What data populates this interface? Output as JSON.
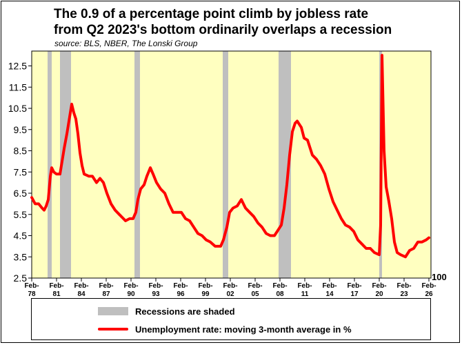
{
  "title_line_1": "The 0.9 of a percentage point climb by jobless rate",
  "title_line_2": "from Q2 2023's bottom ordinarily overlaps a recession",
  "source": "source: BLS, NBER, The Lonski Group",
  "right_label": "100",
  "legend": {
    "recession_label": "Recessions are shaded",
    "rate_label": "Unemployment rate: moving 3-month average in %"
  },
  "colors": {
    "plot_background": "#ffffc0",
    "recession_shade": "#bfbfbf",
    "series_line": "#ff0000"
  },
  "chart_data": {
    "type": "line",
    "title": "The 0.9 of a percentage point climb by jobless rate from Q2 2023's bottom ordinarily overlaps a recession",
    "ylim": [
      2.5,
      13.2
    ],
    "yticks": [
      2.5,
      3.5,
      4.5,
      5.5,
      6.5,
      7.5,
      8.5,
      9.5,
      10.5,
      11.5,
      12.5
    ],
    "ytick_labels": [
      "2.5",
      "3.5",
      "4.5",
      "5.5",
      "6.5",
      "7.5",
      "8.5",
      "9.5",
      "10.5",
      "11.5",
      "12.5"
    ],
    "xlim": [
      "1978-02",
      "2026-05"
    ],
    "xtick_labels": [
      {
        "date": "1978-02",
        "line1": "Feb-",
        "line2": "78"
      },
      {
        "date": "1981-02",
        "line1": "Feb-",
        "line2": "81"
      },
      {
        "date": "1984-02",
        "line1": "Feb-",
        "line2": "84"
      },
      {
        "date": "1987-02",
        "line1": "Feb-",
        "line2": "87"
      },
      {
        "date": "1990-02",
        "line1": "Feb-",
        "line2": "90"
      },
      {
        "date": "1993-02",
        "line1": "Feb-",
        "line2": "93"
      },
      {
        "date": "1996-02",
        "line1": "Feb-",
        "line2": "96"
      },
      {
        "date": "1999-02",
        "line1": "Feb-",
        "line2": "99"
      },
      {
        "date": "2002-02",
        "line1": "Feb-",
        "line2": "02"
      },
      {
        "date": "2005-02",
        "line1": "Feb-",
        "line2": "05"
      },
      {
        "date": "2008-02",
        "line1": "Feb-",
        "line2": "08"
      },
      {
        "date": "2011-02",
        "line1": "Feb-",
        "line2": "11"
      },
      {
        "date": "2014-02",
        "line1": "Feb-",
        "line2": "14"
      },
      {
        "date": "2017-02",
        "line1": "Feb-",
        "line2": "17"
      },
      {
        "date": "2020-02",
        "line1": "Feb-",
        "line2": "20"
      },
      {
        "date": "2023-02",
        "line1": "Feb-",
        "line2": "23"
      },
      {
        "date": "2026-02",
        "line1": "Feb-",
        "line2": "26"
      }
    ],
    "recessions": [
      {
        "start": "1980-01",
        "end": "1980-07"
      },
      {
        "start": "1981-07",
        "end": "1982-11"
      },
      {
        "start": "1990-07",
        "end": "1991-03"
      },
      {
        "start": "2001-03",
        "end": "2001-11"
      },
      {
        "start": "2007-12",
        "end": "2009-06"
      },
      {
        "start": "2020-02",
        "end": "2020-04"
      }
    ],
    "grid": false,
    "legend_position": "bottom",
    "series": [
      {
        "name": "Unemployment rate: moving 3-month average in %",
        "points": [
          [
            "1978-02",
            6.3
          ],
          [
            "1978-07",
            6.0
          ],
          [
            "1978-12",
            6.0
          ],
          [
            "1979-05",
            5.8
          ],
          [
            "1979-08",
            5.7
          ],
          [
            "1979-11",
            5.9
          ],
          [
            "1980-02",
            6.2
          ],
          [
            "1980-05",
            7.3
          ],
          [
            "1980-07",
            7.7
          ],
          [
            "1980-10",
            7.5
          ],
          [
            "1981-02",
            7.4
          ],
          [
            "1981-07",
            7.4
          ],
          [
            "1981-10",
            8.0
          ],
          [
            "1982-01",
            8.6
          ],
          [
            "1982-05",
            9.3
          ],
          [
            "1982-09",
            10.1
          ],
          [
            "1982-12",
            10.7
          ],
          [
            "1983-03",
            10.3
          ],
          [
            "1983-06",
            10.0
          ],
          [
            "1983-09",
            9.3
          ],
          [
            "1983-12",
            8.4
          ],
          [
            "1984-03",
            7.8
          ],
          [
            "1984-06",
            7.4
          ],
          [
            "1985-01",
            7.3
          ],
          [
            "1985-06",
            7.3
          ],
          [
            "1985-12",
            7.0
          ],
          [
            "1986-05",
            7.2
          ],
          [
            "1986-10",
            7.0
          ],
          [
            "1987-03",
            6.5
          ],
          [
            "1987-09",
            6.0
          ],
          [
            "1988-03",
            5.7
          ],
          [
            "1988-09",
            5.5
          ],
          [
            "1989-03",
            5.3
          ],
          [
            "1989-06",
            5.2
          ],
          [
            "1989-12",
            5.3
          ],
          [
            "1990-05",
            5.3
          ],
          [
            "1990-09",
            5.6
          ],
          [
            "1990-12",
            6.2
          ],
          [
            "1991-04",
            6.7
          ],
          [
            "1991-09",
            6.9
          ],
          [
            "1992-01",
            7.3
          ],
          [
            "1992-06",
            7.7
          ],
          [
            "1992-10",
            7.4
          ],
          [
            "1993-03",
            7.0
          ],
          [
            "1993-09",
            6.7
          ],
          [
            "1994-03",
            6.5
          ],
          [
            "1994-09",
            6.0
          ],
          [
            "1995-03",
            5.6
          ],
          [
            "1995-09",
            5.6
          ],
          [
            "1996-03",
            5.6
          ],
          [
            "1996-09",
            5.3
          ],
          [
            "1997-03",
            5.2
          ],
          [
            "1997-09",
            4.9
          ],
          [
            "1998-03",
            4.6
          ],
          [
            "1998-09",
            4.5
          ],
          [
            "1999-03",
            4.3
          ],
          [
            "1999-09",
            4.2
          ],
          [
            "2000-04",
            4.0
          ],
          [
            "2000-12",
            4.0
          ],
          [
            "2001-04",
            4.3
          ],
          [
            "2001-09",
            4.9
          ],
          [
            "2002-01",
            5.6
          ],
          [
            "2002-06",
            5.8
          ],
          [
            "2002-12",
            5.9
          ],
          [
            "2003-06",
            6.2
          ],
          [
            "2003-12",
            5.8
          ],
          [
            "2004-06",
            5.6
          ],
          [
            "2004-12",
            5.4
          ],
          [
            "2005-06",
            5.1
          ],
          [
            "2005-12",
            4.9
          ],
          [
            "2006-06",
            4.6
          ],
          [
            "2006-12",
            4.5
          ],
          [
            "2007-06",
            4.5
          ],
          [
            "2007-12",
            4.8
          ],
          [
            "2008-04",
            5.0
          ],
          [
            "2008-08",
            5.8
          ],
          [
            "2008-12",
            6.9
          ],
          [
            "2009-04",
            8.3
          ],
          [
            "2009-08",
            9.4
          ],
          [
            "2009-12",
            9.8
          ],
          [
            "2010-03",
            9.9
          ],
          [
            "2010-09",
            9.6
          ],
          [
            "2011-01",
            9.1
          ],
          [
            "2011-06",
            9.0
          ],
          [
            "2012-01",
            8.3
          ],
          [
            "2012-07",
            8.1
          ],
          [
            "2013-01",
            7.8
          ],
          [
            "2013-07",
            7.4
          ],
          [
            "2014-01",
            6.7
          ],
          [
            "2014-07",
            6.1
          ],
          [
            "2015-01",
            5.7
          ],
          [
            "2015-07",
            5.3
          ],
          [
            "2016-01",
            5.0
          ],
          [
            "2016-07",
            4.9
          ],
          [
            "2017-01",
            4.7
          ],
          [
            "2017-07",
            4.3
          ],
          [
            "2018-01",
            4.1
          ],
          [
            "2018-07",
            3.9
          ],
          [
            "2019-01",
            3.9
          ],
          [
            "2019-07",
            3.7
          ],
          [
            "2020-02",
            3.6
          ],
          [
            "2020-04",
            5.0
          ],
          [
            "2020-06",
            13.0
          ],
          [
            "2020-09",
            8.5
          ],
          [
            "2020-12",
            6.8
          ],
          [
            "2021-04",
            6.1
          ],
          [
            "2021-08",
            5.3
          ],
          [
            "2021-12",
            4.2
          ],
          [
            "2022-04",
            3.7
          ],
          [
            "2022-09",
            3.6
          ],
          [
            "2023-04",
            3.5
          ],
          [
            "2023-10",
            3.8
          ],
          [
            "2024-04",
            3.9
          ],
          [
            "2024-10",
            4.2
          ],
          [
            "2025-04",
            4.2
          ],
          [
            "2025-10",
            4.3
          ],
          [
            "2026-02",
            4.4
          ]
        ]
      }
    ]
  }
}
